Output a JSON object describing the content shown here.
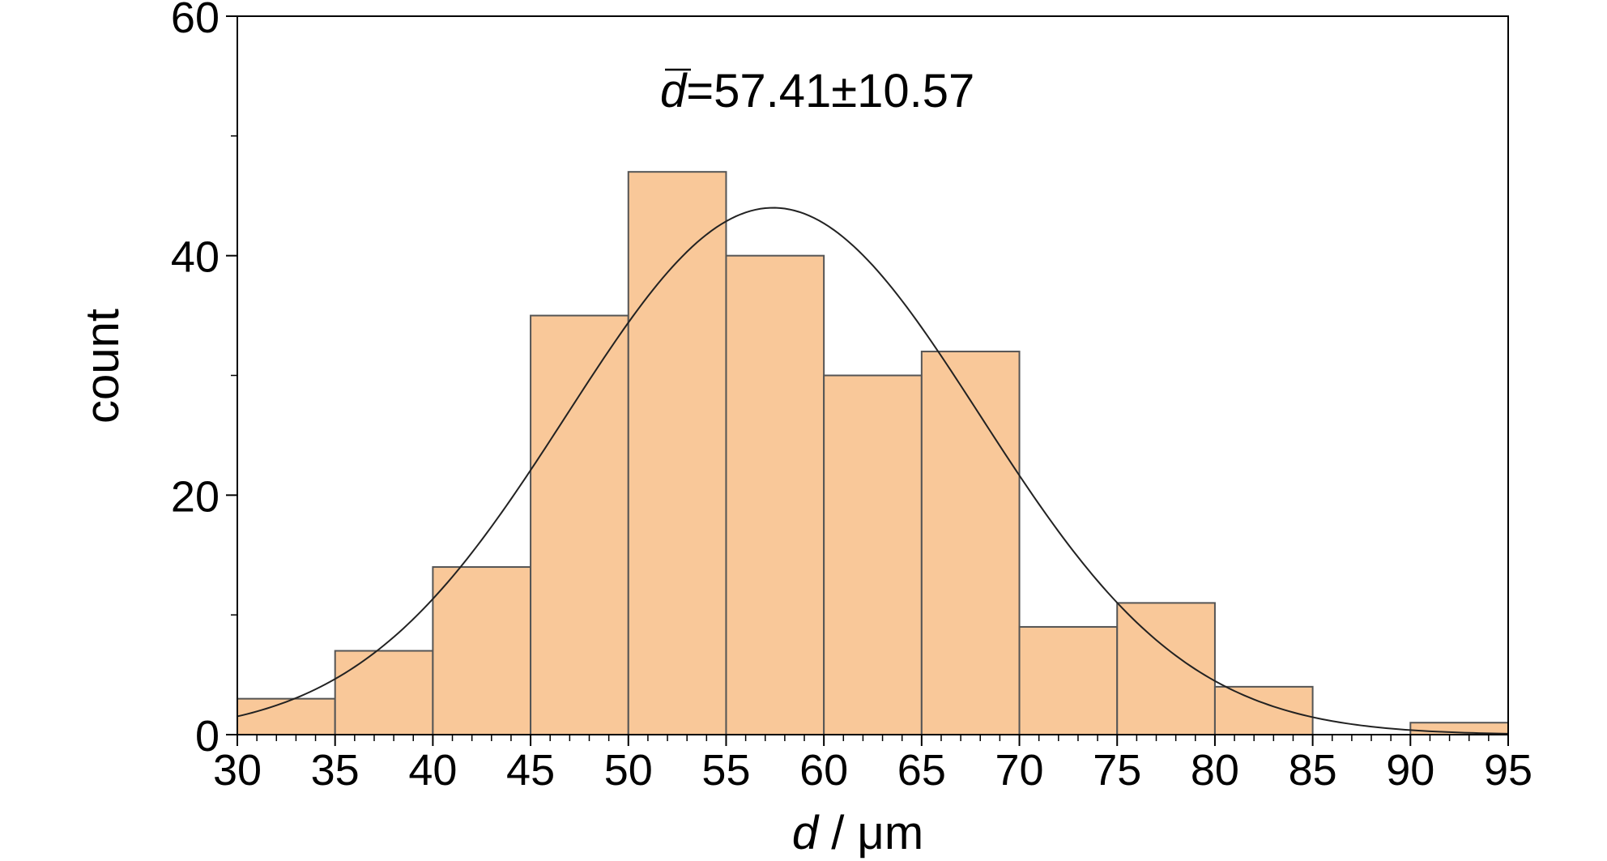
{
  "chart_data": {
    "type": "bar",
    "bin_edges": [
      30,
      35,
      40,
      45,
      50,
      55,
      60,
      65,
      70,
      75,
      80,
      85,
      90,
      95
    ],
    "values": [
      3,
      7,
      14,
      35,
      47,
      40,
      30,
      32,
      9,
      11,
      4,
      0,
      1
    ],
    "xlabel_var": "d",
    "xlabel_unit": " / μm",
    "ylabel": "count",
    "xlim": [
      30,
      95
    ],
    "ylim": [
      0,
      60
    ],
    "x_ticks": [
      "30",
      "35",
      "40",
      "45",
      "50",
      "55",
      "60",
      "65",
      "70",
      "75",
      "80",
      "85",
      "90",
      "95"
    ],
    "y_ticks": [
      "0",
      "20",
      "40",
      "60"
    ],
    "annotation": {
      "symbol": "d",
      "text": "=57.41±10.57"
    },
    "fit_curve": {
      "type": "normal",
      "mean": 57.41,
      "std": 10.57,
      "peak": 44
    },
    "grid": false,
    "bar_color": "#f9c899",
    "bar_edge_color": "#555555",
    "curve_color": "#222222"
  }
}
